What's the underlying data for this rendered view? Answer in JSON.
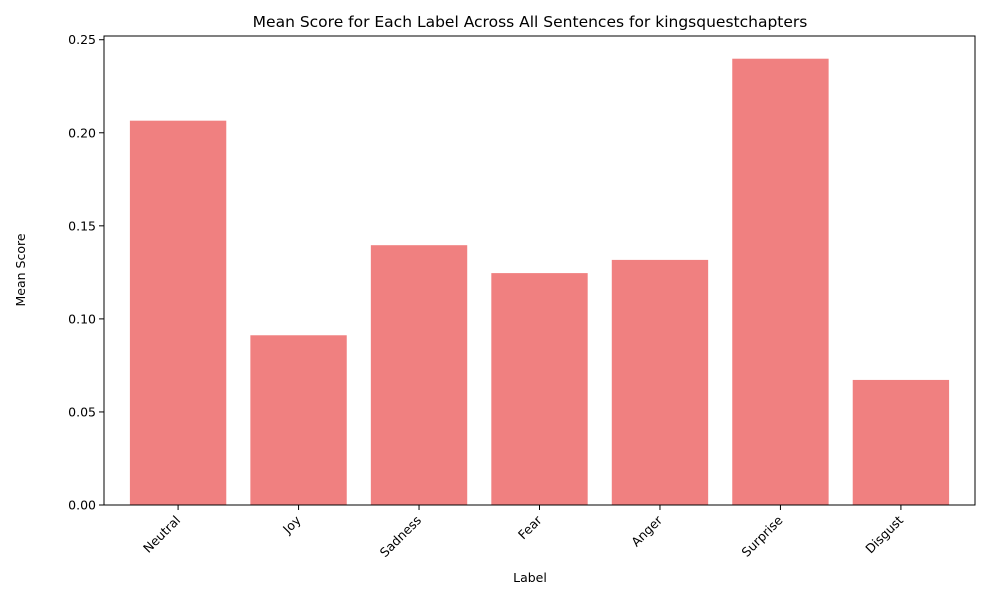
{
  "chart_data": {
    "type": "bar",
    "title": "Mean Score for Each Label Across All Sentences for kingsquestchapters",
    "xlabel": "Label",
    "ylabel": "Mean Score",
    "categories": [
      "Neutral",
      "Joy",
      "Sadness",
      "Fear",
      "Anger",
      "Surprise",
      "Disgust"
    ],
    "values": [
      0.2065,
      0.0912,
      0.1396,
      0.1246,
      0.1317,
      0.2398,
      0.0672
    ],
    "ylim": [
      0,
      0.252
    ],
    "yticks": [
      0.0,
      0.05,
      0.1,
      0.15,
      0.2,
      0.25
    ],
    "ytick_labels": [
      "0.00",
      "0.05",
      "0.10",
      "0.15",
      "0.20",
      "0.25"
    ],
    "bar_color": "#f08080",
    "grid": false,
    "legend": "none"
  }
}
